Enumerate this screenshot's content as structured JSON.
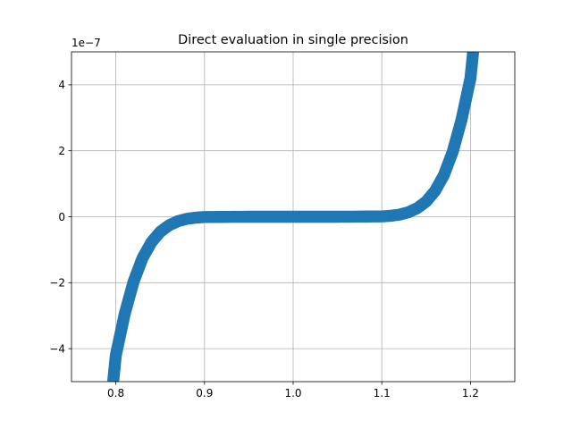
{
  "chart_data": {
    "type": "line",
    "title": "Direct evaluation in single precision",
    "xlabel": "",
    "ylabel": "",
    "y_offset_label": "1e−7",
    "xlim": [
      0.75,
      1.25
    ],
    "ylim": [
      -5,
      5
    ],
    "y_scale_factor": 1e-07,
    "grid": true,
    "legend": "none",
    "x_ticks": [
      0.8,
      0.9,
      1.0,
      1.1,
      1.2
    ],
    "x_tick_labels": [
      "0.8",
      "0.9",
      "1.0",
      "1.1",
      "1.2"
    ],
    "y_ticks": [
      -4,
      -2,
      0,
      2,
      4
    ],
    "y_tick_labels": [
      "−4",
      "−2",
      "0",
      "2",
      "4"
    ],
    "series": [
      {
        "description_of_values": "y = (x - 1)^7 evaluated with rounding noise, shown in units of 1e-7",
        "x": [
          0.797,
          0.8,
          0.81,
          0.82,
          0.83,
          0.84,
          0.85,
          0.86,
          0.87,
          0.88,
          0.89,
          0.9,
          0.95,
          1.0,
          1.05,
          1.1,
          1.11,
          1.12,
          1.13,
          1.14,
          1.15,
          1.16,
          1.17,
          1.18,
          1.19,
          1.2,
          1.203
        ],
        "y": [
          -5.0,
          -4.2,
          -2.95,
          -1.97,
          -1.26,
          -0.78,
          -0.46,
          -0.26,
          -0.135,
          -0.064,
          -0.028,
          -0.01,
          0.0,
          0.0,
          0.0,
          0.01,
          0.028,
          0.064,
          0.135,
          0.26,
          0.46,
          0.78,
          1.26,
          1.97,
          2.95,
          4.2,
          5.0
        ],
        "noise_band": 0.1
      }
    ],
    "colors": {
      "series": "#1f77b4",
      "grid": "#b0b0b0",
      "axes": "#000000"
    }
  }
}
